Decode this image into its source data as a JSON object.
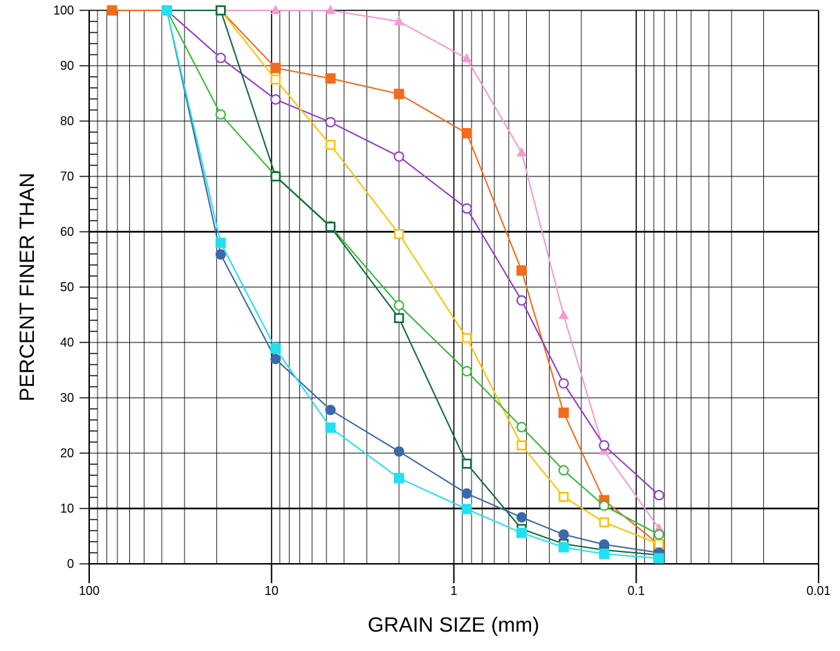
{
  "chart_data": {
    "type": "line",
    "xlabel": "GRAIN SIZE (mm)",
    "ylabel": "PERCENT FINER THAN",
    "x_scale": "log",
    "x_reversed": true,
    "xlim": [
      100,
      0.01
    ],
    "ylim": [
      0,
      100
    ],
    "x_ticks": [
      {
        "value": 100,
        "label": "100"
      },
      {
        "value": 10,
        "label": "10"
      },
      {
        "value": 1,
        "label": "1"
      },
      {
        "value": 0.1,
        "label": "0.1"
      },
      {
        "value": 0.01,
        "label": "0.01"
      }
    ],
    "y_ticks": [
      {
        "value": 0,
        "label": "0"
      },
      {
        "value": 10,
        "label": "10"
      },
      {
        "value": 20,
        "label": "20"
      },
      {
        "value": 30,
        "label": "30"
      },
      {
        "value": 40,
        "label": "40"
      },
      {
        "value": 50,
        "label": "50"
      },
      {
        "value": 60,
        "label": "60"
      },
      {
        "value": 70,
        "label": "70"
      },
      {
        "value": 80,
        "label": "80"
      },
      {
        "value": 90,
        "label": "90"
      },
      {
        "value": 100,
        "label": "100"
      }
    ],
    "reference_lines_y": [
      10,
      60
    ],
    "grid": true,
    "series": [
      {
        "color": "#f57a7a",
        "marker": "triangle-filled",
        "color_override": "#f59ad0",
        "x": [
          75,
          37.5,
          19,
          9.5,
          4.75,
          2,
          0.85,
          0.425,
          0.25,
          0.15,
          0.075
        ],
        "y": [
          100,
          100,
          100,
          100,
          100,
          98,
          91.3,
          74.3,
          44.9,
          20.4,
          6.4
        ]
      },
      {
        "color": "#f26c1f",
        "marker": "square-filled",
        "x": [
          75,
          37.5,
          19,
          9.5,
          4.75,
          2,
          0.85,
          0.425,
          0.25,
          0.15,
          0.075
        ],
        "y": [
          100,
          100,
          100,
          89.6,
          87.7,
          84.9,
          77.8,
          53,
          27.3,
          11.5,
          3.5
        ]
      },
      {
        "color": "#8e3cc8",
        "marker": "circle-open",
        "x": [
          37.5,
          19,
          9.5,
          4.75,
          2,
          0.85,
          0.425,
          0.25,
          0.15,
          0.075
        ],
        "y": [
          100,
          91.4,
          83.9,
          79.8,
          73.6,
          64.2,
          47.6,
          32.6,
          21.4,
          12.4
        ]
      },
      {
        "color": "#ffc000",
        "marker": "square-open",
        "x": [
          37.5,
          19,
          9.5,
          4.75,
          2,
          0.85,
          0.425,
          0.25,
          0.15,
          0.075
        ],
        "y": [
          100,
          100,
          87.5,
          75.7,
          59.6,
          40.8,
          21.4,
          12.1,
          7.5,
          3.6
        ]
      },
      {
        "color": "#33bb33",
        "marker": "circle-open",
        "x": [
          37.5,
          19,
          9.5,
          4.75,
          2,
          0.85,
          0.425,
          0.25,
          0.15,
          0.075
        ],
        "y": [
          100,
          81.2,
          70.1,
          61,
          46.7,
          34.8,
          24.7,
          16.9,
          10.5,
          5.3
        ]
      },
      {
        "color": "#0e6b3a",
        "marker": "square-open-dark",
        "x": [
          37.5,
          19,
          9.5,
          4.75,
          2,
          0.85,
          0.425,
          0.25,
          0.15,
          0.075
        ],
        "y": [
          100,
          100,
          70,
          60.9,
          44.4,
          18.1,
          6.3,
          3.6,
          2.5,
          1.6
        ]
      },
      {
        "color": "#3a68a8",
        "marker": "circle-filled",
        "x": [
          37.5,
          19,
          9.5,
          4.75,
          2,
          0.85,
          0.425,
          0.25,
          0.15,
          0.075
        ],
        "y": [
          100,
          55.9,
          37,
          27.8,
          20.3,
          12.7,
          8.4,
          5.3,
          3.5,
          2
        ]
      },
      {
        "color": "#22e0f0",
        "marker": "square-filled",
        "x": [
          37.5,
          19,
          9.5,
          4.75,
          2,
          0.85,
          0.425,
          0.25,
          0.15,
          0.075
        ],
        "y": [
          100,
          58,
          38.9,
          24.6,
          15.5,
          9.9,
          5.6,
          3,
          1.8,
          1
        ]
      }
    ]
  }
}
